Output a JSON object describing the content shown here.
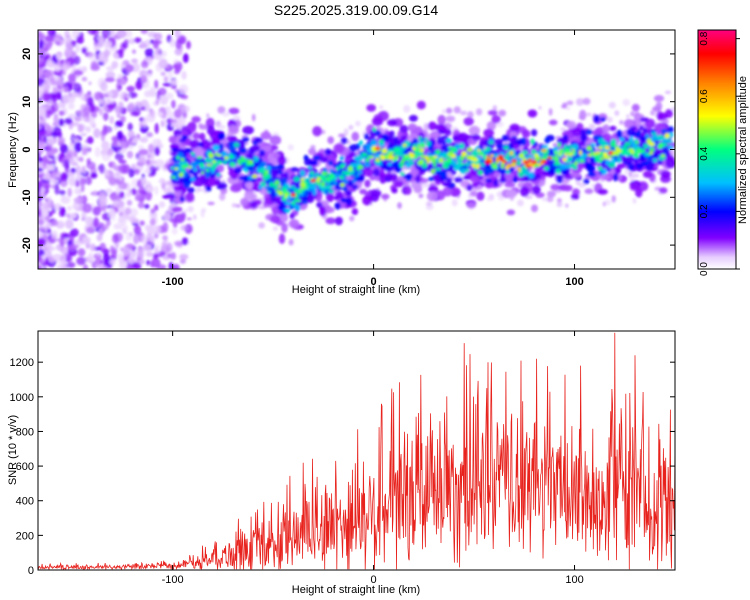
{
  "figure": {
    "title": "S225.2025.319.00.09.G14"
  },
  "chart_data": [
    {
      "type": "heatmap",
      "title": "S225.2025.319.00.09.G14",
      "xlabel": "Height of straight line (km)",
      "ylabel": "Frequency (Hz)",
      "xlim": [
        -167,
        150
      ],
      "ylim": [
        -25,
        25
      ],
      "xticks": [
        -100,
        0,
        100
      ],
      "xtick_labels": [
        "-100",
        "0",
        "100"
      ],
      "yticks": [
        -20,
        -10,
        0,
        10,
        20
      ],
      "ytick_labels": [
        "-20",
        "-10",
        "0",
        "10",
        "20"
      ],
      "colorbar": {
        "label": "Normalized spectral amplitude",
        "range": [
          0,
          0.83
        ],
        "ticks": [
          0.0,
          0.2,
          0.4,
          0.6,
          0.8
        ],
        "tick_labels": [
          "0.0",
          "0.2",
          "0.4",
          "0.6",
          "0.8"
        ],
        "colors": [
          "#ffffff",
          "#e6ccff",
          "#8000ff",
          "#0000ff",
          "#00c0ff",
          "#00ff80",
          "#ffff00",
          "#ff8000",
          "#ff0000",
          "#ff0080"
        ]
      },
      "ridge": {
        "x": [
          -100,
          -90,
          -80,
          -70,
          -60,
          -50,
          -45,
          -40,
          -35,
          -30,
          -20,
          -10,
          0,
          10,
          20,
          30,
          40,
          50,
          60,
          70,
          80,
          90,
          100,
          110,
          120,
          130,
          140,
          148
        ],
        "frequency": [
          -4,
          -3.5,
          -3,
          -1,
          -4,
          -7,
          -9,
          -10,
          -8,
          -6,
          -6,
          -4,
          0,
          -1,
          -1,
          -2,
          -1.5,
          -2,
          -2,
          -2.5,
          -2.5,
          -1,
          -1,
          -1,
          -0.5,
          0,
          0.5,
          1.5
        ]
      }
    },
    {
      "type": "line",
      "xlabel": "Height of straight line (km)",
      "ylabel": "SNR (10 * v/v)",
      "xlim": [
        -167,
        150
      ],
      "ylim": [
        0,
        1380
      ],
      "xticks": [
        -100,
        0,
        100
      ],
      "xtick_labels": [
        "-100",
        "0",
        "100"
      ],
      "yticks": [
        0,
        200,
        400,
        600,
        800,
        1000,
        1200
      ],
      "ytick_labels": [
        "0",
        "200",
        "400",
        "600",
        "800",
        "1000",
        "1200"
      ],
      "series": [
        {
          "name": "SNR",
          "color": "#e8231e",
          "envelope": {
            "x": [
              -167,
              -140,
              -120,
              -100,
              -90,
              -80,
              -70,
              -60,
              -50,
              -40,
              -30,
              -20,
              -10,
              0,
              10,
              20,
              30,
              40,
              50,
              60,
              70,
              80,
              90,
              100,
              110,
              120,
              130,
              140,
              150
            ],
            "baseline": [
              15,
              15,
              16,
              22,
              35,
              55,
              80,
              105,
              130,
              170,
              200,
              230,
              260,
              290,
              330,
              380,
              420,
              440,
              450,
              460,
              450,
              440,
              420,
              400,
              390,
              380,
              370,
              360,
              350
            ],
            "amplitude": [
              20,
              22,
              25,
              30,
              60,
              110,
              160,
              220,
              280,
              330,
              400,
              450,
              520,
              580,
              640,
              700,
              720,
              740,
              720,
              700,
              680,
              660,
              640,
              640,
              660,
              680,
              660,
              640,
              620
            ]
          },
          "peaks": [
            {
              "x": 45,
              "y": 1310
            },
            {
              "x": 120,
              "y": 1370
            },
            {
              "x": 57,
              "y": 1200
            },
            {
              "x": 81,
              "y": 1220
            },
            {
              "x": 103,
              "y": 1180
            },
            {
              "x": 130,
              "y": 1240
            }
          ]
        }
      ]
    }
  ]
}
